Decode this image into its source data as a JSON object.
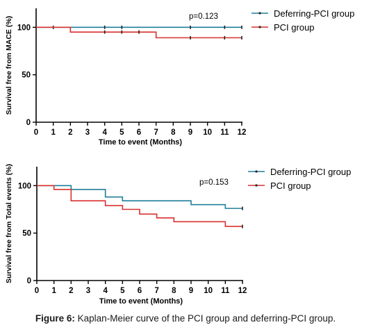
{
  "figure": {
    "caption_label": "Figure 6:",
    "caption_text": " Kaplan-Meier curve of the PCI group and deferring-PCI group."
  },
  "colors": {
    "deferring": "#1f7f9a",
    "pci": "#d9302f",
    "axis": "#000000"
  },
  "chart_data": [
    {
      "type": "line",
      "step": true,
      "title": "",
      "xlabel": "Time to event (Months)",
      "ylabel": "Survival free from MACE (%)",
      "xlim": [
        0,
        12
      ],
      "ylim": [
        0,
        120
      ],
      "x_ticks": [
        0,
        1,
        2,
        3,
        4,
        5,
        6,
        7,
        8,
        9,
        10,
        11,
        12
      ],
      "y_ticks": [
        0,
        50,
        100
      ],
      "annotation": "p=0.123",
      "legend": "top-right",
      "grid": false,
      "series": [
        {
          "name": "Deferring-PCI group",
          "color": "#1f7f9a",
          "steps": [
            [
              0,
              100
            ],
            [
              12,
              100
            ]
          ],
          "censor": [
            [
              1,
              100
            ],
            [
              4,
              100
            ],
            [
              5,
              100
            ],
            [
              9,
              100
            ],
            [
              11,
              100
            ],
            [
              12,
              100
            ]
          ]
        },
        {
          "name": "PCI group",
          "color": "#d9302f",
          "steps": [
            [
              0,
              100
            ],
            [
              2,
              95
            ],
            [
              7,
              89
            ],
            [
              12,
              89
            ]
          ],
          "censor": [
            [
              4,
              95
            ],
            [
              5,
              95
            ],
            [
              6,
              95
            ],
            [
              9,
              89
            ],
            [
              11,
              89
            ],
            [
              12,
              89
            ]
          ]
        }
      ]
    },
    {
      "type": "line",
      "step": true,
      "title": "",
      "xlabel": "Time to event (Months)",
      "ylabel": "Survival free from Total events (%)",
      "xlim": [
        0,
        12
      ],
      "ylim": [
        0,
        120
      ],
      "x_ticks": [
        0,
        1,
        2,
        3,
        4,
        5,
        6,
        7,
        8,
        9,
        10,
        11,
        12
      ],
      "y_ticks": [
        0,
        50,
        100
      ],
      "annotation": "p=0.153",
      "legend": "top-right",
      "grid": false,
      "series": [
        {
          "name": "Deferring-PCI group",
          "color": "#1f7f9a",
          "steps": [
            [
              0,
              100
            ],
            [
              2,
              96
            ],
            [
              4,
              88
            ],
            [
              5,
              84
            ],
            [
              9,
              80
            ],
            [
              11,
              76
            ],
            [
              12,
              76
            ]
          ],
          "censor": [
            [
              12,
              76
            ]
          ]
        },
        {
          "name": "PCI group",
          "color": "#d9302f",
          "steps": [
            [
              0,
              100
            ],
            [
              1,
              96
            ],
            [
              2,
              84
            ],
            [
              4,
              79
            ],
            [
              5,
              75
            ],
            [
              6,
              70
            ],
            [
              7,
              66
            ],
            [
              8,
              62
            ],
            [
              11,
              57
            ],
            [
              12,
              57
            ]
          ],
          "censor": [
            [
              12,
              57
            ]
          ]
        }
      ]
    }
  ]
}
